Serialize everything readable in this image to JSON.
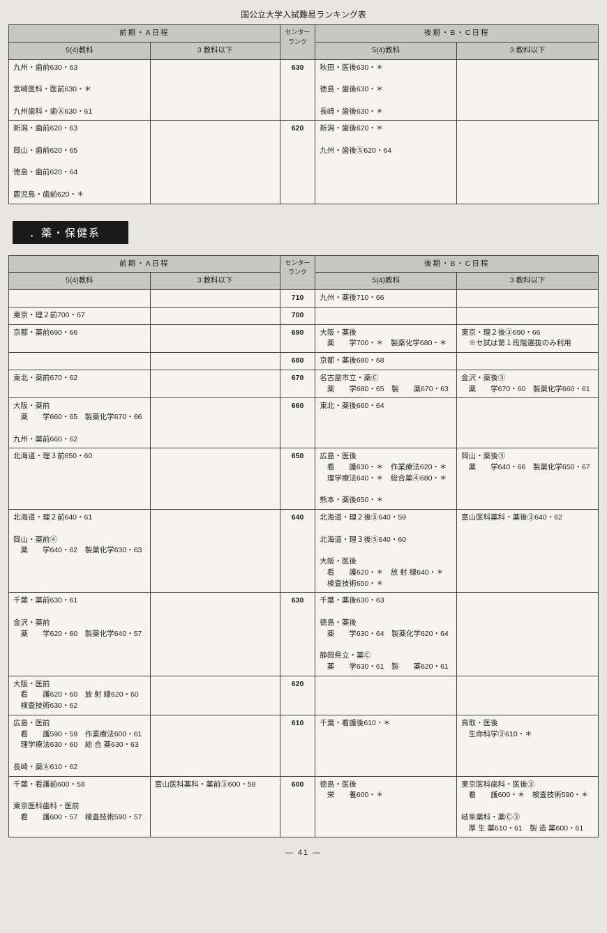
{
  "page_title": "国公立大学入試難易ランキング表",
  "page_number": "― 41 ―",
  "section_banner": "．薬・保健系",
  "table_headers": {
    "zenki": "前期・A日程",
    "kouki": "後期・B・C日程",
    "center": "センター\nランク",
    "sub54": "5(4)教科",
    "sub3": "3 教科以下"
  },
  "colors": {
    "background": "#e8e6e2",
    "table_bg": "#f5f4f1",
    "header_bg": "#c7c7c4",
    "border": "#444444",
    "banner_bg": "#1a1a1a",
    "banner_text": "#ffffff",
    "text": "#222222"
  },
  "table1": {
    "rows": [
      {
        "rank": "630",
        "zenki54": "九州・歯前630・63\n\n宮崎医科・医前630・＊\n\n九州歯科・歯Ⓐ630・61",
        "zenki3": "",
        "kouki54": "秋田・医後630・＊\n\n徳島・歯後630・＊\n\n長崎・歯後630・＊",
        "kouki3": ""
      },
      {
        "rank": "620",
        "zenki54": "新潟・歯前620・63\n\n岡山・歯前620・65\n\n徳島・歯前620・64\n\n鹿児島・歯前620・＊",
        "zenki3": "",
        "kouki54": "新潟・歯後620・＊\n\n九州・歯後⑤620・64",
        "kouki3": ""
      }
    ]
  },
  "table2": {
    "rows": [
      {
        "rank": "710",
        "zenki54": "",
        "zenki3": "",
        "kouki54": "九州・薬後710・66",
        "kouki3": ""
      },
      {
        "rank": "700",
        "zenki54": "東京・理２前700・67",
        "zenki3": "",
        "kouki54": "",
        "kouki3": ""
      },
      {
        "rank": "690",
        "zenki54": "京都・薬前690・66",
        "zenki3": "",
        "kouki54": "大阪・薬後\n　薬　　学700・＊　製薬化学680・＊",
        "kouki3": "東京・理２後③690・66\n　※セ試は第１段階選抜のみ利用"
      },
      {
        "rank": "680",
        "zenki54": "",
        "zenki3": "",
        "kouki54": "京都・薬後680・68",
        "kouki3": ""
      },
      {
        "rank": "670",
        "zenki54": "東北・薬前670・62",
        "zenki3": "",
        "kouki54": "名古屋市立・薬Ⓒ\n　薬　　学680・65　製　　薬670・63",
        "kouki3": "金沢・薬後③\n　薬　　学670・60　製薬化学660・61"
      },
      {
        "rank": "660",
        "zenki54": "大阪・薬前\n　薬　　学660・65　製薬化学670・66\n\n九州・薬前660・62",
        "zenki3": "",
        "kouki54": "東北・薬後660・64",
        "kouki3": ""
      },
      {
        "rank": "650",
        "zenki54": "北海道・理３前650・60",
        "zenki3": "",
        "kouki54": "広島・医後\n　看　　護630・＊　作業療法620・＊\n　理学療法640・＊　総合薬④680・＊\n\n熊本・薬後650・＊",
        "kouki3": "岡山・薬後③\n　薬　　学640・66　製薬化学650・67"
      },
      {
        "rank": "640",
        "zenki54": "北海道・理２前640・61\n\n岡山・薬前④\n　薬　　学640・62　製薬化学630・63",
        "zenki3": "",
        "kouki54": "北海道・理２後⑤640・59\n\n北海道・理３後⑤640・60\n\n大阪・医後\n　看　　護620・＊　放 射 線640・＊\n　検査技術650・＊",
        "kouki3": "富山医科薬科・薬後③640・62"
      },
      {
        "rank": "630",
        "zenki54": "千葉・薬前630・61\n\n金沢・薬前\n　薬　　学620・60　製薬化学640・57",
        "zenki3": "",
        "kouki54": "千葉・薬後630・63\n\n徳島・薬後\n　薬　　学630・64　製薬化学620・64\n\n静岡県立・薬Ⓒ\n　薬　　学630・61　製　　薬620・61",
        "kouki3": ""
      },
      {
        "rank": "620",
        "zenki54": "大阪・医前\n　看　　護620・60　放 射 線620・60\n　検査技術630・62",
        "zenki3": "",
        "kouki54": "",
        "kouki3": ""
      },
      {
        "rank": "610",
        "zenki54": "広島・医前\n　看　　護590・59　作業療法600・61\n　理学療法630・60　総 合 薬630・63\n\n長崎・薬Ⓐ610・62",
        "zenki3": "",
        "kouki54": "千葉・看護後610・＊",
        "kouki3": "鳥取・医後\n　生命科学③610・＊"
      },
      {
        "rank": "600",
        "zenki54": "千葉・看護前600・58\n\n東京医科歯科・医前\n　看　　護600・57　検査技術590・57",
        "zenki3": "富山医科薬科・薬前③600・58",
        "kouki54": "徳島・医後\n　栄　　養600・＊",
        "kouki3": "東京医科歯科・医後③\n　看　　護600・＊　検査技術590・＊\n\n岐阜薬科・薬Ⓒ③\n　厚 生 薬610・61　製 造 薬600・61"
      }
    ]
  }
}
